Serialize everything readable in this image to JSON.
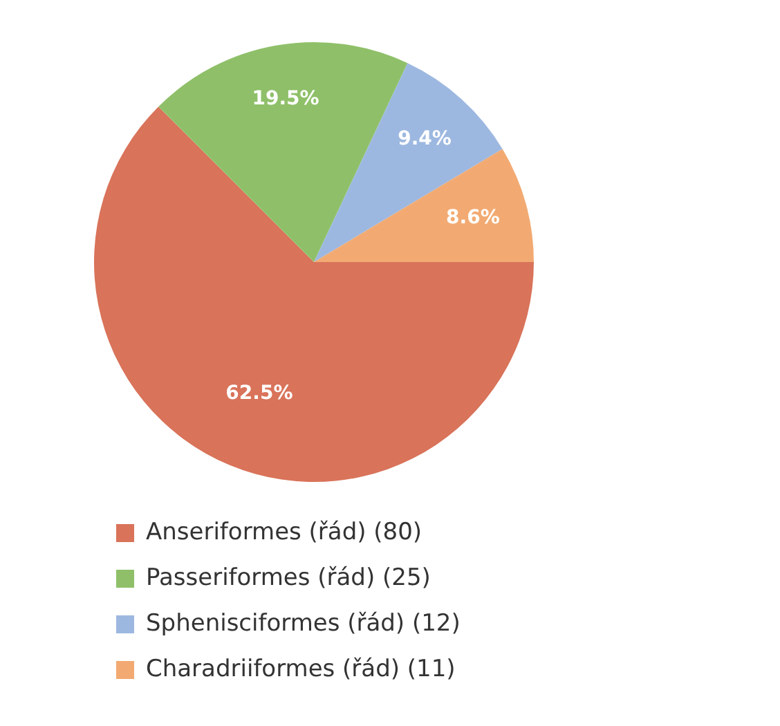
{
  "chart_data": {
    "type": "pie",
    "categories": [
      "Anseriformes (řád) (80)",
      "Passeriformes (řád) (25)",
      "Sphenisciformes (řád) (12)",
      "Charadriiformes (řád) (11)"
    ],
    "values": [
      62.5,
      19.5,
      9.4,
      8.6
    ],
    "value_labels": [
      "62.5%",
      "19.5%",
      "9.4%",
      "8.6%"
    ],
    "colors": [
      "#d9735a",
      "#8fc069",
      "#9db8e0",
      "#f2aa72"
    ],
    "legend": "bottom left"
  }
}
